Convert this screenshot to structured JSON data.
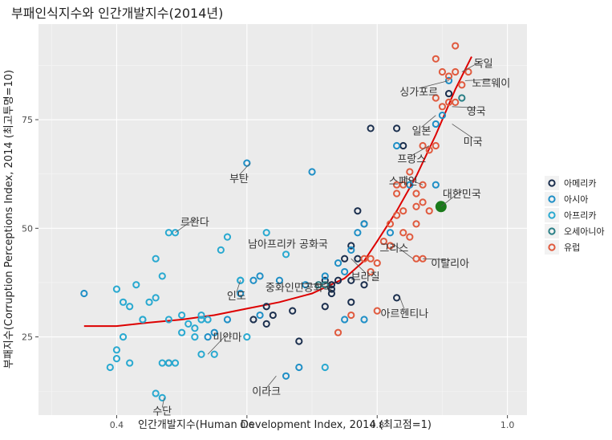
{
  "chart_data": {
    "type": "scatter",
    "title": "부패인식지수와 인간개발지수(2014년)",
    "xlabel": "인간개발지수(Human Development Index, 2014 (최고점=1)",
    "ylabel": "부패지수(Corruption Perceptions Index, 2014 (최고투명=10)",
    "xlim": [
      0.28,
      1.03
    ],
    "ylim": [
      7,
      97
    ],
    "xticks": [
      0.4,
      0.6,
      0.8,
      1.0
    ],
    "xtick_labels": [
      "0.4",
      "0.6",
      "0.8",
      "1.0"
    ],
    "yticks": [
      25,
      50,
      75
    ],
    "ytick_labels": [
      "25",
      "50",
      "75"
    ],
    "grid": true,
    "legend": "right",
    "colors": {
      "아메리카": "#1b2f4e",
      "아시아": "#1f8fc6",
      "아프리카": "#29a9d0",
      "오세아니아": "#2a7f86",
      "유럽": "#e05a3e"
    },
    "trend_color": "#dd0000",
    "highlight_color": "#1a7a1a",
    "series": [
      {
        "name": "아메리카",
        "points": [
          [
            0.91,
            81
          ],
          [
            0.79,
            73
          ],
          [
            0.83,
            73
          ],
          [
            0.84,
            69
          ],
          [
            0.77,
            54
          ],
          [
            0.78,
            51
          ],
          [
            0.76,
            46
          ],
          [
            0.77,
            43
          ],
          [
            0.83,
            34
          ],
          [
            0.76,
            38
          ],
          [
            0.78,
            37
          ],
          [
            0.73,
            36
          ],
          [
            0.73,
            35
          ],
          [
            0.72,
            32
          ],
          [
            0.76,
            33
          ],
          [
            0.67,
            31
          ],
          [
            0.64,
            30
          ],
          [
            0.63,
            32
          ],
          [
            0.61,
            29
          ],
          [
            0.63,
            28
          ],
          [
            0.68,
            24
          ],
          [
            0.48,
            19
          ],
          [
            0.72,
            38
          ],
          [
            0.73,
            37
          ],
          [
            0.74,
            38
          ],
          [
            0.75,
            43
          ]
        ]
      },
      {
        "name": "아시아",
        "points": [
          [
            0.91,
            84
          ],
          [
            0.9,
            76
          ],
          [
            0.89,
            74
          ],
          [
            0.83,
            69
          ],
          [
            0.85,
            60
          ],
          [
            0.78,
            51
          ],
          [
            0.77,
            49
          ],
          [
            0.82,
            49
          ],
          [
            0.89,
            60
          ],
          [
            0.6,
            65
          ],
          [
            0.7,
            63
          ],
          [
            0.74,
            42
          ],
          [
            0.76,
            45
          ],
          [
            0.72,
            39
          ],
          [
            0.65,
            38
          ],
          [
            0.62,
            39
          ],
          [
            0.61,
            38
          ],
          [
            0.59,
            38
          ],
          [
            0.59,
            35
          ],
          [
            0.69,
            37
          ],
          [
            0.66,
            16
          ],
          [
            0.62,
            30
          ],
          [
            0.68,
            18
          ],
          [
            0.57,
            29
          ],
          [
            0.55,
            26
          ],
          [
            0.54,
            25
          ],
          [
            0.78,
            29
          ],
          [
            0.75,
            29
          ],
          [
            0.35,
            35
          ],
          [
            0.75,
            40
          ]
        ]
      },
      {
        "name": "아프리카",
        "points": [
          [
            0.4,
            36
          ],
          [
            0.41,
            33
          ],
          [
            0.42,
            32
          ],
          [
            0.43,
            37
          ],
          [
            0.44,
            29
          ],
          [
            0.45,
            33
          ],
          [
            0.46,
            34
          ],
          [
            0.47,
            39
          ],
          [
            0.48,
            49
          ],
          [
            0.49,
            49
          ],
          [
            0.48,
            29
          ],
          [
            0.5,
            30
          ],
          [
            0.51,
            28
          ],
          [
            0.52,
            27
          ],
          [
            0.53,
            29
          ],
          [
            0.54,
            29
          ],
          [
            0.47,
            19
          ],
          [
            0.48,
            19
          ],
          [
            0.49,
            19
          ],
          [
            0.5,
            26
          ],
          [
            0.41,
            25
          ],
          [
            0.4,
            22
          ],
          [
            0.39,
            18
          ],
          [
            0.4,
            20
          ],
          [
            0.42,
            19
          ],
          [
            0.46,
            12
          ],
          [
            0.47,
            11
          ],
          [
            0.44,
            29
          ],
          [
            0.53,
            21
          ],
          [
            0.55,
            21
          ],
          [
            0.56,
            45
          ],
          [
            0.57,
            48
          ],
          [
            0.52,
            25
          ],
          [
            0.59,
            38
          ],
          [
            0.66,
            44
          ],
          [
            0.72,
            18
          ],
          [
            0.63,
            49
          ],
          [
            0.46,
            43
          ],
          [
            0.53,
            30
          ],
          [
            0.6,
            25
          ]
        ]
      },
      {
        "name": "오세아니아",
        "points": [
          [
            0.93,
            80
          ],
          [
            0.72,
            37
          ],
          [
            0.71,
            37
          ]
        ]
      },
      {
        "name": "유럽",
        "points": [
          [
            0.92,
            92
          ],
          [
            0.91,
            85
          ],
          [
            0.92,
            86
          ],
          [
            0.93,
            83
          ],
          [
            0.94,
            86
          ],
          [
            0.9,
            86
          ],
          [
            0.89,
            89
          ],
          [
            0.89,
            80
          ],
          [
            0.91,
            79
          ],
          [
            0.9,
            78
          ],
          [
            0.92,
            79
          ],
          [
            0.87,
            69
          ],
          [
            0.88,
            68
          ],
          [
            0.89,
            69
          ],
          [
            0.85,
            63
          ],
          [
            0.84,
            60
          ],
          [
            0.83,
            60
          ],
          [
            0.83,
            58
          ],
          [
            0.86,
            58
          ],
          [
            0.87,
            60
          ],
          [
            0.86,
            55
          ],
          [
            0.84,
            54
          ],
          [
            0.83,
            53
          ],
          [
            0.82,
            51
          ],
          [
            0.86,
            51
          ],
          [
            0.84,
            49
          ],
          [
            0.81,
            47
          ],
          [
            0.82,
            46
          ],
          [
            0.79,
            43
          ],
          [
            0.8,
            42
          ],
          [
            0.78,
            43
          ],
          [
            0.79,
            40
          ],
          [
            0.86,
            43
          ],
          [
            0.87,
            43
          ],
          [
            0.85,
            48
          ],
          [
            0.8,
            31
          ],
          [
            0.74,
            26
          ],
          [
            0.76,
            30
          ],
          [
            0.87,
            56
          ],
          [
            0.88,
            54
          ]
        ]
      }
    ],
    "highlight": {
      "label": "대한민국",
      "x": 0.898,
      "y": 55
    },
    "trend": [
      [
        0.35,
        27.5
      ],
      [
        0.4,
        27.5
      ],
      [
        0.45,
        28.3
      ],
      [
        0.5,
        29.0
      ],
      [
        0.55,
        30.0
      ],
      [
        0.6,
        31.5
      ],
      [
        0.65,
        33.0
      ],
      [
        0.7,
        35.0
      ],
      [
        0.75,
        38.5
      ],
      [
        0.78,
        42.5
      ],
      [
        0.8,
        47.0
      ],
      [
        0.83,
        54.0
      ],
      [
        0.86,
        62.0
      ],
      [
        0.89,
        71.5
      ],
      [
        0.92,
        82.0
      ],
      [
        0.945,
        89.5
      ]
    ],
    "annotations": [
      {
        "text": "독일",
        "x": 0.93,
        "y": 86,
        "lx": 0.963,
        "ly": 88
      },
      {
        "text": "노르웨이",
        "x": 0.935,
        "y": 84,
        "lx": 0.975,
        "ly": 83.5
      },
      {
        "text": "싱가포르",
        "x": 0.91,
        "y": 84,
        "lx": 0.864,
        "ly": 81.5
      },
      {
        "text": "영국",
        "x": 0.915,
        "y": 78,
        "lx": 0.952,
        "ly": 77
      },
      {
        "text": "일본",
        "x": 0.89,
        "y": 76,
        "lx": 0.868,
        "ly": 72.5
      },
      {
        "text": "미국",
        "x": 0.915,
        "y": 74,
        "lx": 0.947,
        "ly": 70
      },
      {
        "text": "프랑스",
        "x": 0.88,
        "y": 69,
        "lx": 0.853,
        "ly": 66
      },
      {
        "text": "스페인",
        "x": 0.87,
        "y": 60,
        "lx": 0.84,
        "ly": 61
      },
      {
        "text": "대한민국",
        "x": 0.898,
        "y": 55,
        "lx": 0.93,
        "ly": 58
      },
      {
        "text": "부탄",
        "x": 0.605,
        "y": 65,
        "lx": 0.588,
        "ly": 61.5
      },
      {
        "text": "르완다",
        "x": 0.49,
        "y": 49,
        "lx": 0.52,
        "ly": 51.5
      },
      {
        "text": "남아프리카 공화국",
        "x": 0.666,
        "y": 44,
        "lx": 0.663,
        "ly": 46.5
      },
      {
        "text": "그리스",
        "x": 0.855,
        "y": 43,
        "lx": 0.826,
        "ly": 45.5
      },
      {
        "text": "이탈리아",
        "x": 0.87,
        "y": 43,
        "lx": 0.912,
        "ly": 42
      },
      {
        "text": "브라질",
        "x": 0.76,
        "y": 43,
        "lx": 0.782,
        "ly": 39
      },
      {
        "text": "인도",
        "x": 0.59,
        "y": 38,
        "lx": 0.584,
        "ly": 34.5
      },
      {
        "text": "중화인민공화국",
        "x": 0.72,
        "y": 37,
        "lx": 0.68,
        "ly": 36.5
      },
      {
        "text": "아르헨티나",
        "x": 0.835,
        "y": 34,
        "lx": 0.842,
        "ly": 30.5
      },
      {
        "text": "미얀마",
        "x": 0.54,
        "y": 21,
        "lx": 0.57,
        "ly": 25
      },
      {
        "text": "이라크",
        "x": 0.645,
        "y": 16,
        "lx": 0.63,
        "ly": 12.5
      },
      {
        "text": "수단",
        "x": 0.473,
        "y": 11,
        "lx": 0.47,
        "ly": 8
      }
    ]
  }
}
